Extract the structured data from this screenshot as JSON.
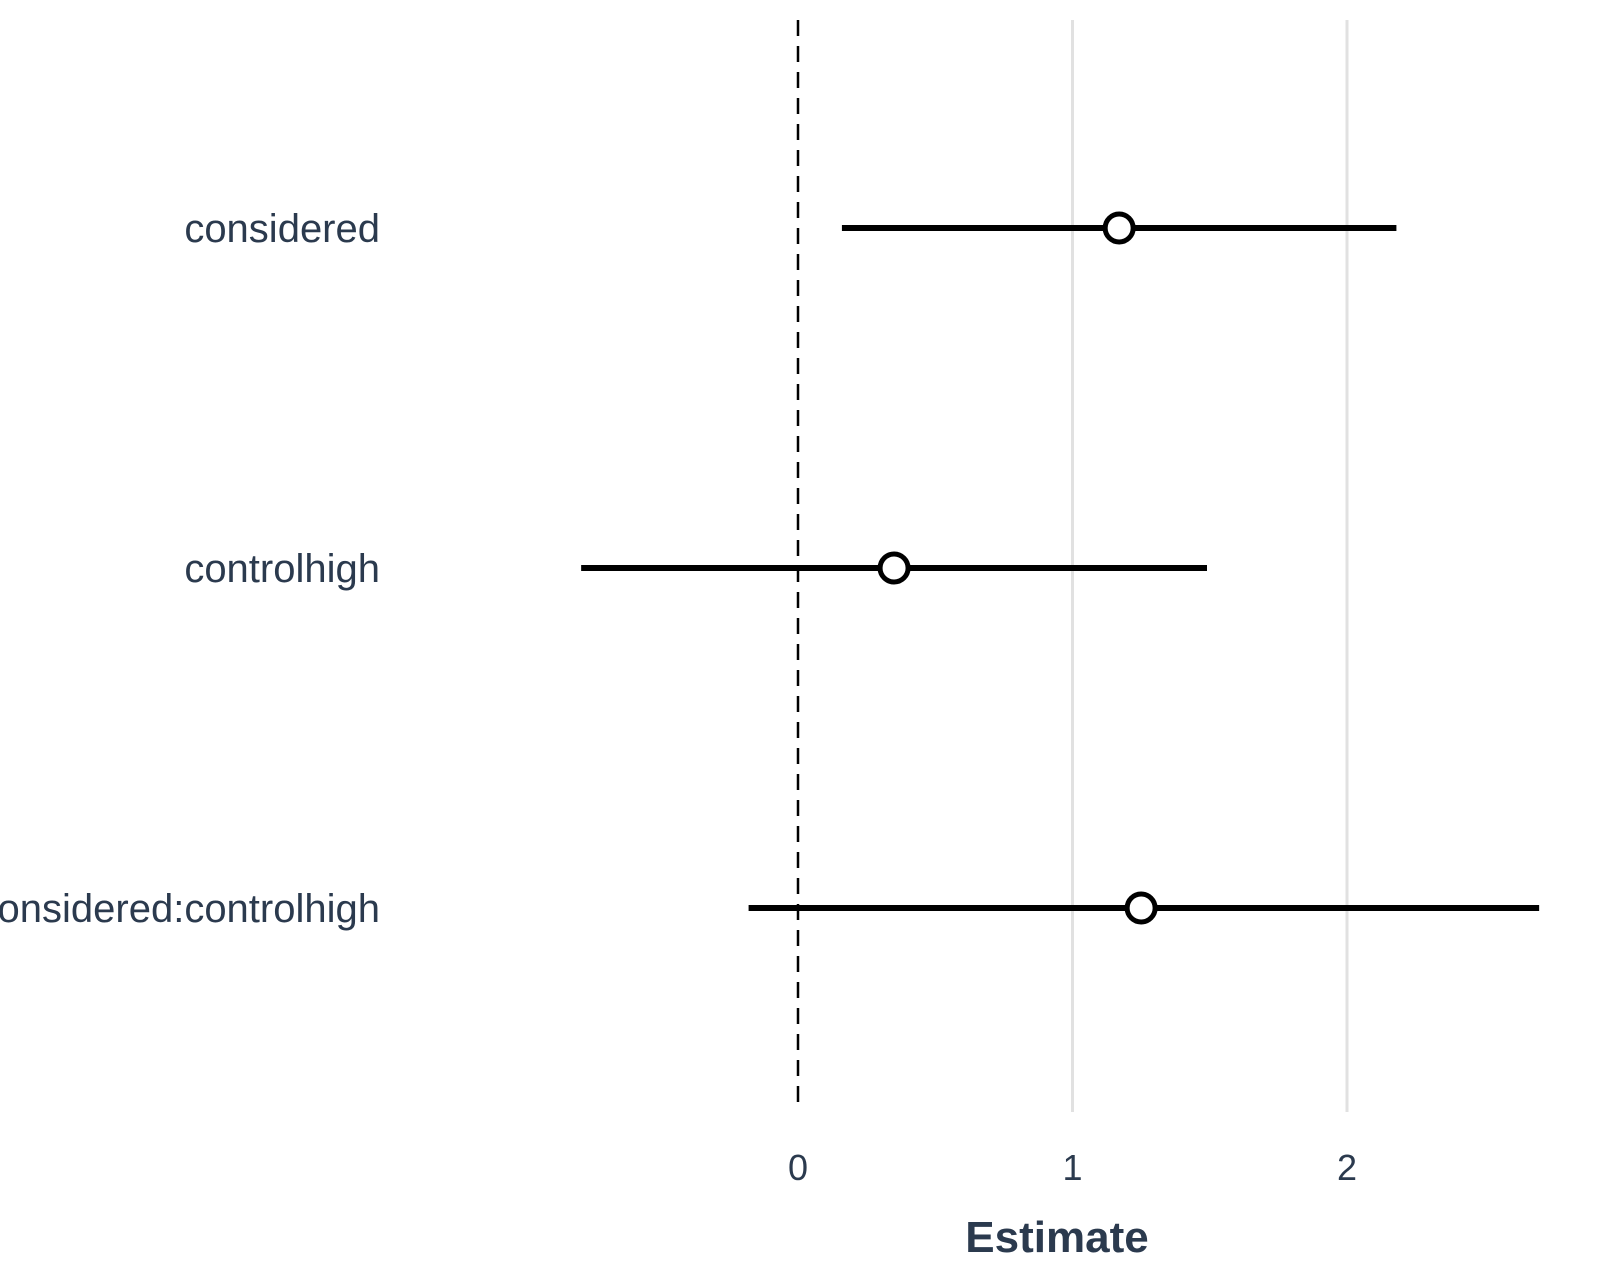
{
  "chart_data": {
    "type": "scatter",
    "xlabel": "Estimate",
    "ylabel": "",
    "xlim": [
      -1.0,
      2.7
    ],
    "x_ticks": [
      0,
      1,
      2
    ],
    "x_tick_labels": [
      "0",
      "1",
      "2"
    ],
    "reference_line_x": 0,
    "grid": "vertical major gridlines",
    "terms": [
      {
        "name": "considered",
        "estimate": 1.17,
        "lower": 0.16,
        "upper": 2.18
      },
      {
        "name": "controlhigh",
        "estimate": 0.35,
        "lower": -0.79,
        "upper": 1.49
      },
      {
        "name": "considered:controlhigh",
        "estimate": 1.25,
        "lower": -0.18,
        "upper": 2.7
      }
    ]
  },
  "colors": {
    "text": "#2b3a4e",
    "grid": "#e1e1e1",
    "line": "#000000",
    "point_fill": "#ffffff"
  }
}
